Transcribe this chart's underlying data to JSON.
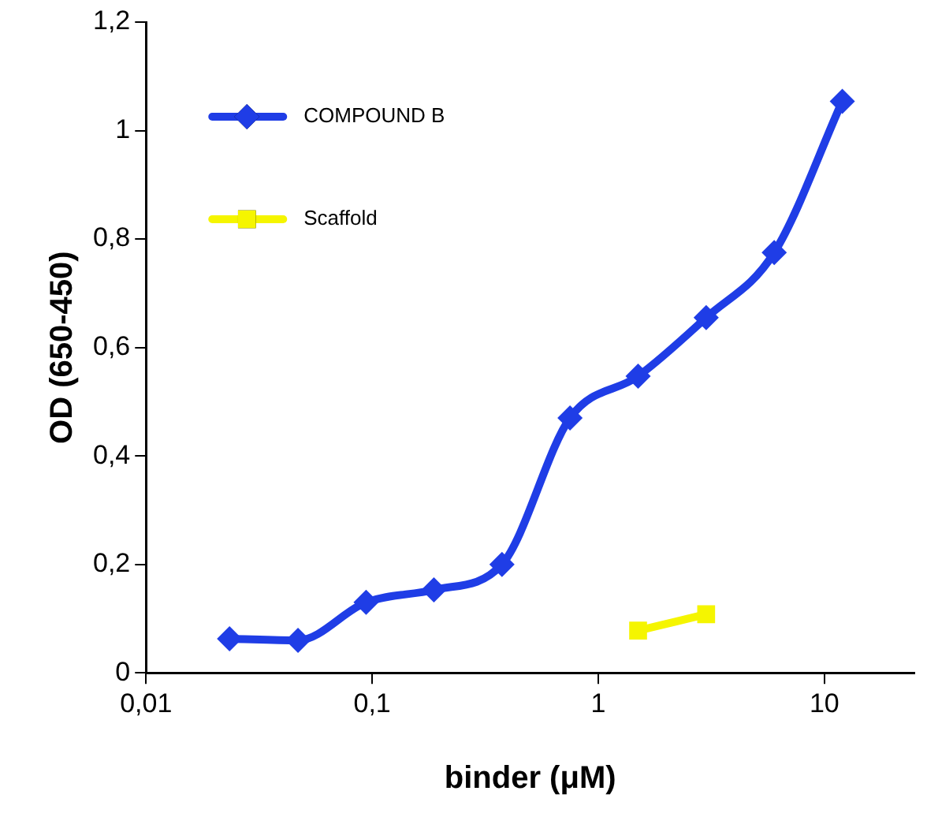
{
  "chart_data": {
    "type": "line",
    "xlabel": "binder (μM)",
    "ylabel": "OD (650-450)",
    "log": "x",
    "xlim": [
      0.01,
      25
    ],
    "xticks": [
      {
        "value": 0.01,
        "label": "0,01"
      },
      {
        "value": 0.1,
        "label": "0,1"
      },
      1,
      10
    ],
    "ylim": [
      0,
      1.2
    ],
    "yticks": [
      0,
      {
        "value": 0.2,
        "label": "0,2"
      },
      {
        "value": 0.4,
        "label": "0,4"
      },
      {
        "value": 0.6,
        "label": "0,6"
      },
      {
        "value": 0.8,
        "label": "0,8"
      },
      1,
      {
        "value": 1.2,
        "label": "1,2"
      }
    ],
    "grid": false,
    "legend": "top left",
    "series": [
      {
        "name": "COMPOUND B",
        "color": "#1f3de6",
        "marker": "diamond",
        "x": [
          0.0234,
          0.047,
          0.094,
          0.1875,
          0.375,
          0.75,
          1.5,
          3,
          6,
          12
        ],
        "values": [
          0.063,
          0.06,
          0.13,
          0.153,
          0.2,
          0.47,
          0.547,
          0.655,
          0.775,
          1.054
        ]
      },
      {
        "name": "Scaffold",
        "color": "#f5f500",
        "marker": "square",
        "x": [
          1.5,
          3
        ],
        "values": [
          0.078,
          0.108
        ]
      }
    ]
  }
}
